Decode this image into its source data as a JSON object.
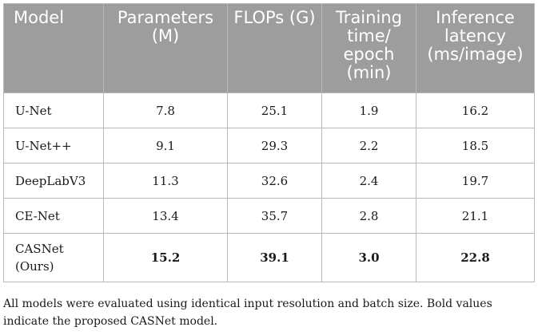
{
  "table": {
    "headers": [
      "Model",
      "Parameters (M)",
      "FLOPs (G)",
      "Training time/ epoch (min)",
      "Inference latency (ms/image)"
    ],
    "rows": [
      {
        "model": "U-Net",
        "params": "7.8",
        "flops": "25.1",
        "train": "1.9",
        "latency": "16.2"
      },
      {
        "model": "U-Net++",
        "params": "9.1",
        "flops": "29.3",
        "train": "2.2",
        "latency": "18.5"
      },
      {
        "model": "DeepLabV3",
        "params": "11.3",
        "flops": "32.6",
        "train": "2.4",
        "latency": "19.7"
      },
      {
        "model": "CE-Net",
        "params": "13.4",
        "flops": "35.7",
        "train": "2.8",
        "latency": "21.1"
      },
      {
        "model": "CASNet (Ours)",
        "params": "15.2",
        "flops": "39.1",
        "train": "3.0",
        "latency": "22.8"
      }
    ]
  },
  "footnote": "All models were evaluated using identical input resolution and batch size. Bold values indicate the proposed CASNet model.",
  "colors": {
    "header_bg": "#9d9d9d",
    "header_text": "#ffffff",
    "border": "#b9b9b9",
    "body_text": "#1a1a1a"
  }
}
